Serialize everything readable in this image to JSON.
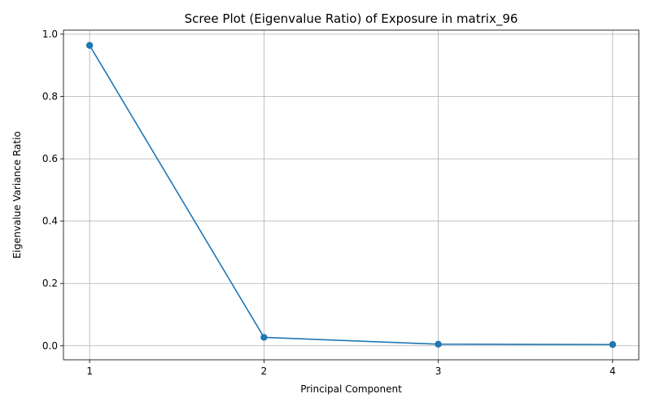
{
  "chart_data": {
    "type": "line",
    "title": "Scree Plot (Eigenvalue Ratio) of Exposure in matrix_96",
    "xlabel": "Principal Component",
    "ylabel": "Eigenvalue Variance Ratio",
    "x": [
      1,
      2,
      3,
      4
    ],
    "series": [
      {
        "values": [
          0.964,
          0.027,
          0.005,
          0.004
        ],
        "color": "#1f77b4",
        "marker": "circle"
      }
    ],
    "xticks": [
      "1",
      "2",
      "3",
      "4"
    ],
    "yticks": [
      "0.0",
      "0.2",
      "0.4",
      "0.6",
      "0.8",
      "1.0"
    ],
    "xlim": [
      0.85,
      4.15
    ],
    "ylim": [
      -0.045,
      1.013
    ],
    "grid": true,
    "legend": "none"
  }
}
